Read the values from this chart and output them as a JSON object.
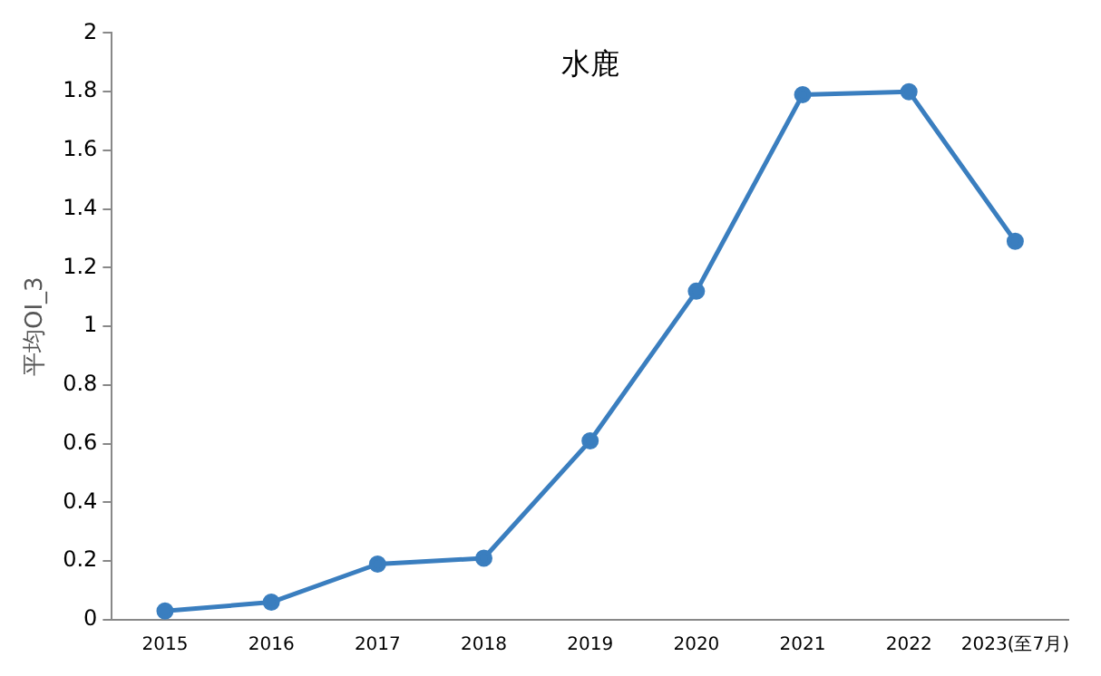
{
  "chart_data": {
    "type": "line",
    "title": "水鹿",
    "ylabel": "平均OI_3",
    "categories": [
      "2015",
      "2016",
      "2017",
      "2018",
      "2019",
      "2020",
      "2021",
      "2022",
      "2023(至7月)"
    ],
    "series": [
      {
        "color": "#3a7ebf",
        "values": [
          0.03,
          0.06,
          0.19,
          0.21,
          0.61,
          1.12,
          1.79,
          1.8,
          1.29
        ]
      }
    ],
    "ylim": [
      0,
      2
    ],
    "yticks": [
      0,
      0.2,
      0.4,
      0.6,
      0.8,
      1,
      1.2,
      1.4,
      1.6,
      1.8,
      2
    ],
    "grid": false,
    "legend": false,
    "marker": "circle",
    "line_style": "solid"
  }
}
